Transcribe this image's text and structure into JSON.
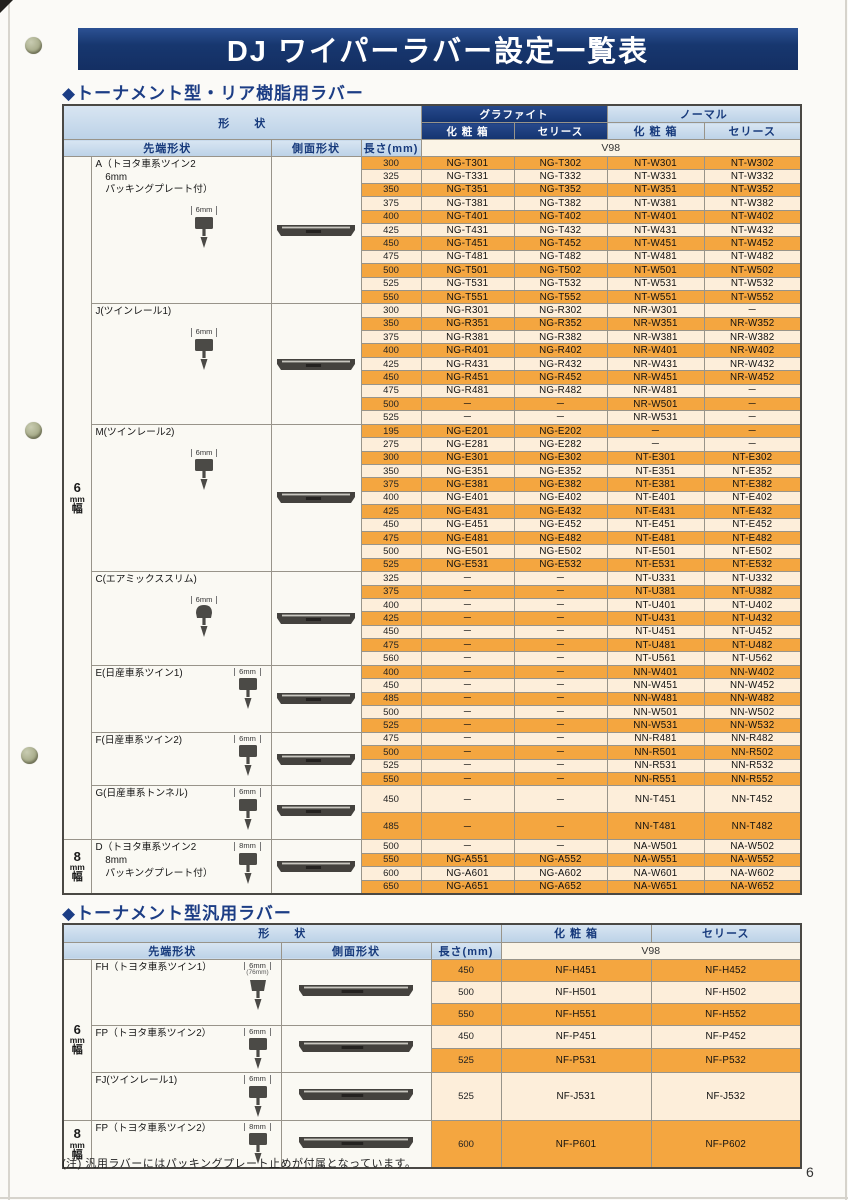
{
  "page": {
    "title": "DJ ワイパーラバー設定一覧表",
    "page_number": "6",
    "footnote": "(注) 汎用ラバーにはパッキングプレート止めが付属となっています。"
  },
  "table1": {
    "heading": "◆トーナメント型・リア樹脂用ラバー",
    "headers": {
      "shape": "形　　状",
      "graphite": "グラファイト",
      "normal": "ノーマル",
      "box": "化 粧 箱",
      "series": "セリース",
      "tip": "先端形状",
      "side": "側面形状",
      "length": "長さ(mm)",
      "model": "V98"
    },
    "width_groups": [
      {
        "label": "6mm幅",
        "label_lines": [
          "6",
          "mm",
          "幅"
        ],
        "sections": [
          "A",
          "J",
          "M",
          "C",
          "E",
          "F",
          "G"
        ]
      },
      {
        "label": "8mm幅",
        "label_lines": [
          "8",
          "mm",
          "幅"
        ],
        "sections": [
          "D"
        ]
      }
    ],
    "sections": [
      {
        "id": "A",
        "label": "A（トヨタ車系ツイン2\n　6mm\n　パッキングプレート付）",
        "tip_size": "6mm",
        "rows": [
          [
            "300",
            "NG-T301",
            "NG-T302",
            "NT-W301",
            "NT-W302"
          ],
          [
            "325",
            "NG-T331",
            "NG-T332",
            "NT-W331",
            "NT-W332"
          ],
          [
            "350",
            "NG-T351",
            "NG-T352",
            "NT-W351",
            "NT-W352"
          ],
          [
            "375",
            "NG-T381",
            "NG-T382",
            "NT-W381",
            "NT-W382"
          ],
          [
            "400",
            "NG-T401",
            "NG-T402",
            "NT-W401",
            "NT-W402"
          ],
          [
            "425",
            "NG-T431",
            "NG-T432",
            "NT-W431",
            "NT-W432"
          ],
          [
            "450",
            "NG-T451",
            "NG-T452",
            "NT-W451",
            "NT-W452"
          ],
          [
            "475",
            "NG-T481",
            "NG-T482",
            "NT-W481",
            "NT-W482"
          ],
          [
            "500",
            "NG-T501",
            "NG-T502",
            "NT-W501",
            "NT-W502"
          ],
          [
            "525",
            "NG-T531",
            "NG-T532",
            "NT-W531",
            "NT-W532"
          ],
          [
            "550",
            "NG-T551",
            "NG-T552",
            "NT-W551",
            "NT-W552"
          ]
        ]
      },
      {
        "id": "J",
        "label": "J(ツインレール1)",
        "tip_size": "6mm",
        "rows": [
          [
            "300",
            "NG-R301",
            "NG-R302",
            "NR-W301",
            "－"
          ],
          [
            "350",
            "NG-R351",
            "NG-R352",
            "NR-W351",
            "NR-W352"
          ],
          [
            "375",
            "NG-R381",
            "NG-R382",
            "NR-W381",
            "NR-W382"
          ],
          [
            "400",
            "NG-R401",
            "NG-R402",
            "NR-W401",
            "NR-W402"
          ],
          [
            "425",
            "NG-R431",
            "NG-R432",
            "NR-W431",
            "NR-W432"
          ],
          [
            "450",
            "NG-R451",
            "NG-R452",
            "NR-W451",
            "NR-W452"
          ],
          [
            "475",
            "NG-R481",
            "NG-R482",
            "NR-W481",
            "－"
          ],
          [
            "500",
            "－",
            "－",
            "NR-W501",
            "－"
          ],
          [
            "525",
            "－",
            "－",
            "NR-W531",
            "－"
          ]
        ]
      },
      {
        "id": "M",
        "label": "M(ツインレール2)",
        "tip_size": "6mm",
        "rows": [
          [
            "195",
            "NG-E201",
            "NG-E202",
            "－",
            "－"
          ],
          [
            "275",
            "NG-E281",
            "NG-E282",
            "－",
            "－"
          ],
          [
            "300",
            "NG-E301",
            "NG-E302",
            "NT-E301",
            "NT-E302"
          ],
          [
            "350",
            "NG-E351",
            "NG-E352",
            "NT-E351",
            "NT-E352"
          ],
          [
            "375",
            "NG-E381",
            "NG-E382",
            "NT-E381",
            "NT-E382"
          ],
          [
            "400",
            "NG-E401",
            "NG-E402",
            "NT-E401",
            "NT-E402"
          ],
          [
            "425",
            "NG-E431",
            "NG-E432",
            "NT-E431",
            "NT-E432"
          ],
          [
            "450",
            "NG-E451",
            "NG-E452",
            "NT-E451",
            "NT-E452"
          ],
          [
            "475",
            "NG-E481",
            "NG-E482",
            "NT-E481",
            "NT-E482"
          ],
          [
            "500",
            "NG-E501",
            "NG-E502",
            "NT-E501",
            "NT-E502"
          ],
          [
            "525",
            "NG-E531",
            "NG-E532",
            "NT-E531",
            "NT-E532"
          ]
        ]
      },
      {
        "id": "C",
        "label": "C(エアミックススリム)",
        "tip_size": "6mm",
        "rows": [
          [
            "325",
            "－",
            "－",
            "NT-U331",
            "NT-U332"
          ],
          [
            "375",
            "－",
            "－",
            "NT-U381",
            "NT-U382"
          ],
          [
            "400",
            "－",
            "－",
            "NT-U401",
            "NT-U402"
          ],
          [
            "425",
            "－",
            "－",
            "NT-U431",
            "NT-U432"
          ],
          [
            "450",
            "－",
            "－",
            "NT-U451",
            "NT-U452"
          ],
          [
            "475",
            "－",
            "－",
            "NT-U481",
            "NT-U482"
          ],
          [
            "560",
            "－",
            "－",
            "NT-U561",
            "NT-U562"
          ]
        ]
      },
      {
        "id": "E",
        "label": "E(日産車系ツイン1)",
        "tip_size": "6mm",
        "rows": [
          [
            "400",
            "－",
            "－",
            "NN-W401",
            "NN-W402"
          ],
          [
            "450",
            "－",
            "－",
            "NN-W451",
            "NN-W452"
          ],
          [
            "485",
            "－",
            "－",
            "NN-W481",
            "NN-W482"
          ],
          [
            "500",
            "－",
            "－",
            "NN-W501",
            "NN-W502"
          ],
          [
            "525",
            "－",
            "－",
            "NN-W531",
            "NN-W532"
          ]
        ]
      },
      {
        "id": "F",
        "label": "F(日産車系ツイン2)",
        "tip_size": "6mm",
        "rows": [
          [
            "475",
            "－",
            "－",
            "NN-R481",
            "NN-R482"
          ],
          [
            "500",
            "－",
            "－",
            "NN-R501",
            "NN-R502"
          ],
          [
            "525",
            "－",
            "－",
            "NN-R531",
            "NN-R532"
          ],
          [
            "550",
            "－",
            "－",
            "NN-R551",
            "NN-R552"
          ]
        ]
      },
      {
        "id": "G",
        "label": "G(日産車系トンネル)",
        "tip_size": "6mm",
        "rows": [
          [
            "450",
            "－",
            "－",
            "NN-T451",
            "NN-T452"
          ],
          [
            "485",
            "－",
            "－",
            "NN-T481",
            "NN-T482"
          ]
        ]
      },
      {
        "id": "D",
        "label": "D（トヨタ車系ツイン2\n　8mm\n　パッキングプレート付）",
        "tip_size": "8mm",
        "rows": [
          [
            "500",
            "－",
            "－",
            "NA-W501",
            "NA-W502"
          ],
          [
            "550",
            "NG-A551",
            "NG-A552",
            "NA-W551",
            "NA-W552"
          ],
          [
            "600",
            "NG-A601",
            "NG-A602",
            "NA-W601",
            "NA-W602"
          ],
          [
            "650",
            "NG-A651",
            "NG-A652",
            "NA-W651",
            "NA-W652"
          ]
        ]
      }
    ]
  },
  "table2": {
    "heading": "◆トーナメント型汎用ラバー",
    "headers": {
      "shape": "形　　状",
      "box": "化 粧 箱",
      "series": "セリース",
      "tip": "先端形状",
      "side": "側面形状",
      "length": "長さ(mm)",
      "model": "V98"
    },
    "width_groups": [
      {
        "label": "6mm幅",
        "label_lines": [
          "6",
          "mm",
          "幅"
        ],
        "sections": [
          "FH",
          "FP6",
          "FJ"
        ]
      },
      {
        "label": "8mm幅",
        "label_lines": [
          "8",
          "mm",
          "幅"
        ],
        "sections": [
          "FP8"
        ]
      }
    ],
    "sections": [
      {
        "id": "FH",
        "label": "FH（トヨタ車系ツイン1）",
        "tip_size": "6mm",
        "tip_size_sub": "(76mm)",
        "rows": [
          [
            "450",
            "NF-H451",
            "NF-H452"
          ],
          [
            "500",
            "NF-H501",
            "NF-H502"
          ],
          [
            "550",
            "NF-H551",
            "NF-H552"
          ]
        ]
      },
      {
        "id": "FP6",
        "label": "FP（トヨタ車系ツイン2）",
        "tip_size": "6mm",
        "rows": [
          [
            "450",
            "NF-P451",
            "NF-P452"
          ],
          [
            "525",
            "NF-P531",
            "NF-P532"
          ]
        ]
      },
      {
        "id": "FJ",
        "label": "FJ(ツインレール1)",
        "tip_size": "6mm",
        "rows": [
          [
            "525",
            "NF-J531",
            "NF-J532"
          ]
        ]
      },
      {
        "id": "FP8",
        "label": "FP（トヨタ車系ツイン2）",
        "tip_size": "8mm",
        "rows": [
          [
            "600",
            "NF-P601",
            "NF-P602"
          ]
        ]
      }
    ]
  }
}
